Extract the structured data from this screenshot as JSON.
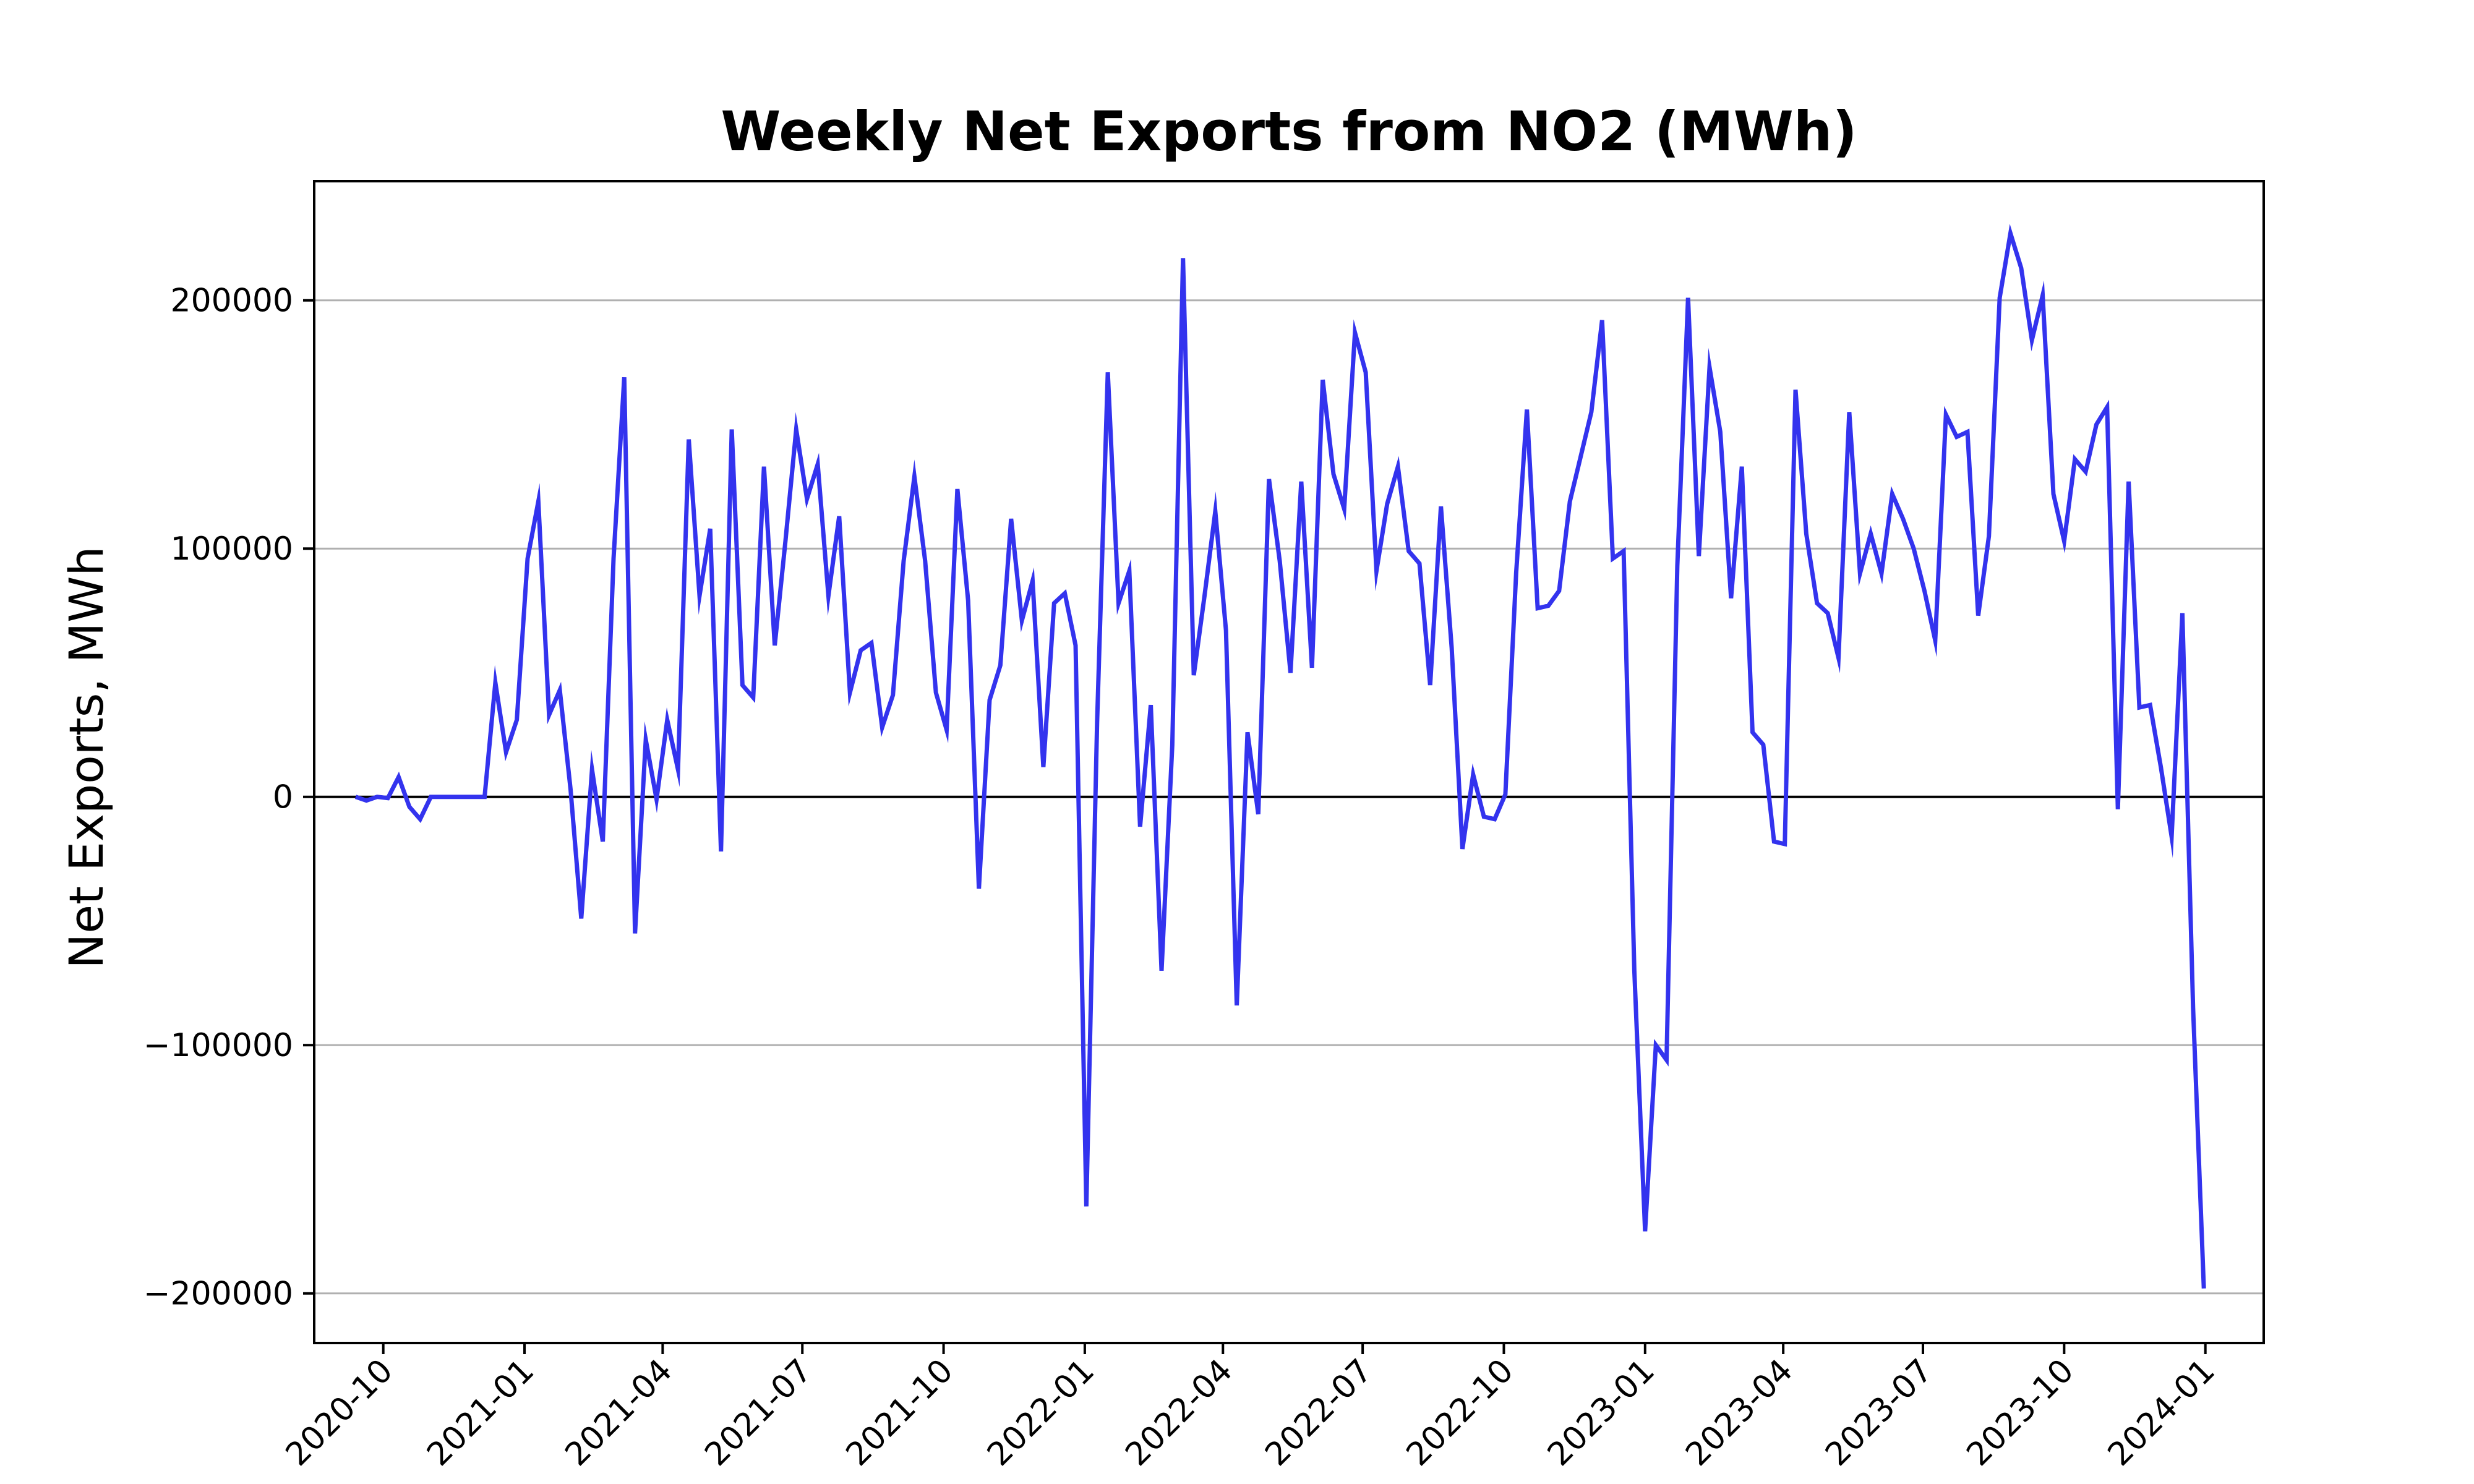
{
  "chart_data": {
    "type": "line",
    "title": "Weekly Net Exports from NO2 (MWh)",
    "xlabel": "",
    "ylabel": "Net Exports, MWh",
    "x_range": [
      "2020-08-17",
      "2024-02-08"
    ],
    "ylim": [
      -220000,
      248000
    ],
    "yticks": [
      -200000,
      -100000,
      0,
      100000,
      200000
    ],
    "ytick_labels": [
      "−200000",
      "−100000",
      "0",
      "100000",
      "200000"
    ],
    "xticks": [
      "2020-10-01",
      "2021-01-01",
      "2021-04-01",
      "2021-07-01",
      "2021-10-01",
      "2022-01-01",
      "2022-04-01",
      "2022-07-01",
      "2022-10-01",
      "2023-01-01",
      "2023-04-01",
      "2023-07-01",
      "2023-10-01",
      "2024-01-01"
    ],
    "xtick_labels": [
      "2020-10",
      "2021-01",
      "2021-04",
      "2021-07",
      "2021-10",
      "2022-01",
      "2022-04",
      "2022-07",
      "2022-10",
      "2023-01",
      "2023-04",
      "2023-07",
      "2023-10",
      "2024-01"
    ],
    "grid": {
      "y": true,
      "x": false
    },
    "zero_line": true,
    "colors": {
      "series": "#3333ee",
      "grid": "#b0b0b0",
      "zero_line": "#000000",
      "axes": "#000000"
    },
    "series": [
      {
        "name": "",
        "x": [
          "2020-09-13",
          "2020-09-20",
          "2020-09-27",
          "2020-10-04",
          "2020-10-11",
          "2020-10-18",
          "2020-10-25",
          "2020-11-01",
          "2020-11-08",
          "2020-11-15",
          "2020-11-22",
          "2020-11-29",
          "2020-12-06",
          "2020-12-13",
          "2020-12-20",
          "2020-12-27",
          "2021-01-03",
          "2021-01-10",
          "2021-01-17",
          "2021-01-24",
          "2021-01-31",
          "2021-02-07",
          "2021-02-14",
          "2021-02-21",
          "2021-02-28",
          "2021-03-07",
          "2021-03-14",
          "2021-03-21",
          "2021-03-28",
          "2021-04-04",
          "2021-04-11",
          "2021-04-18",
          "2021-04-25",
          "2021-05-02",
          "2021-05-09",
          "2021-05-16",
          "2021-05-23",
          "2021-05-30",
          "2021-06-06",
          "2021-06-13",
          "2021-06-20",
          "2021-06-27",
          "2021-07-04",
          "2021-07-11",
          "2021-07-18",
          "2021-07-25",
          "2021-08-01",
          "2021-08-08",
          "2021-08-15",
          "2021-08-22",
          "2021-08-29",
          "2021-09-05",
          "2021-09-12",
          "2021-09-19",
          "2021-09-26",
          "2021-10-03",
          "2021-10-10",
          "2021-10-17",
          "2021-10-24",
          "2021-10-31",
          "2021-11-07",
          "2021-11-14",
          "2021-11-21",
          "2021-11-28",
          "2021-12-05",
          "2021-12-12",
          "2021-12-19",
          "2021-12-26",
          "2022-01-02",
          "2022-01-09",
          "2022-01-16",
          "2022-01-23",
          "2022-01-30",
          "2022-02-06",
          "2022-02-13",
          "2022-02-20",
          "2022-02-27",
          "2022-03-06",
          "2022-03-13",
          "2022-03-20",
          "2022-03-27",
          "2022-04-03",
          "2022-04-10",
          "2022-04-17",
          "2022-04-24",
          "2022-05-01",
          "2022-05-08",
          "2022-05-15",
          "2022-05-22",
          "2022-05-29",
          "2022-06-05",
          "2022-06-12",
          "2022-06-19",
          "2022-06-26",
          "2022-07-03",
          "2022-07-10",
          "2022-07-17",
          "2022-07-24",
          "2022-07-31",
          "2022-08-07",
          "2022-08-14",
          "2022-08-21",
          "2022-08-28",
          "2022-09-04",
          "2022-09-11",
          "2022-09-18",
          "2022-09-25",
          "2022-10-02",
          "2022-10-09",
          "2022-10-16",
          "2022-10-23",
          "2022-10-30",
          "2022-11-06",
          "2022-11-13",
          "2022-11-20",
          "2022-11-27",
          "2022-12-04",
          "2022-12-11",
          "2022-12-18",
          "2022-12-25",
          "2023-01-01",
          "2023-01-08",
          "2023-01-15",
          "2023-01-22",
          "2023-01-29",
          "2023-02-05",
          "2023-02-12",
          "2023-02-19",
          "2023-02-26",
          "2023-03-05",
          "2023-03-12",
          "2023-03-19",
          "2023-03-26",
          "2023-04-02",
          "2023-04-09",
          "2023-04-16",
          "2023-04-23",
          "2023-04-30",
          "2023-05-07",
          "2023-05-14",
          "2023-05-21",
          "2023-05-28",
          "2023-06-04",
          "2023-06-11",
          "2023-06-18",
          "2023-06-25",
          "2023-07-02",
          "2023-07-09",
          "2023-07-16",
          "2023-07-23",
          "2023-07-30",
          "2023-08-06",
          "2023-08-13",
          "2023-08-20",
          "2023-08-27",
          "2023-09-03",
          "2023-09-10",
          "2023-09-17",
          "2023-09-24",
          "2023-10-01",
          "2023-10-08",
          "2023-10-15",
          "2023-10-22",
          "2023-10-29",
          "2023-11-05",
          "2023-11-12",
          "2023-11-19",
          "2023-11-26",
          "2023-12-03",
          "2023-12-10",
          "2023-12-17",
          "2023-12-24",
          "2023-12-31"
        ],
        "values": [
          0,
          -1500,
          0,
          -500,
          8000,
          -4000,
          -9000,
          0,
          0,
          0,
          0,
          0,
          0,
          46000,
          18000,
          31000,
          96000,
          119000,
          33000,
          43000,
          3000,
          -49000,
          11000,
          -18000,
          96000,
          169000,
          -55000,
          23000,
          -1000,
          31000,
          11000,
          144000,
          81000,
          108000,
          -22000,
          148000,
          45000,
          40000,
          133000,
          61000,
          103000,
          148000,
          120000,
          134000,
          81000,
          113000,
          42000,
          59000,
          62000,
          28000,
          41000,
          95000,
          129000,
          95000,
          42000,
          27000,
          124000,
          79000,
          -37000,
          39000,
          53000,
          112000,
          71000,
          87000,
          12000,
          78000,
          82000,
          61000,
          -165000,
          30000,
          171000,
          78000,
          91000,
          -12000,
          37000,
          -70000,
          21000,
          217000,
          49000,
          81000,
          115000,
          67000,
          -84000,
          26000,
          -7000,
          128000,
          95000,
          50000,
          127000,
          52000,
          168000,
          130000,
          116000,
          187000,
          171000,
          91000,
          118000,
          133000,
          99000,
          94000,
          45000,
          117000,
          60000,
          -21000,
          9000,
          -8000,
          -9000,
          1000,
          90000,
          156000,
          76000,
          77000,
          83000,
          119000,
          137000,
          155000,
          192000,
          96000,
          99000,
          -70000,
          -175000,
          -100000,
          -106000,
          93000,
          201000,
          97000,
          173000,
          147000,
          80000,
          133000,
          26000,
          21000,
          -18000,
          -19000,
          164000,
          106000,
          78000,
          74000,
          56000,
          155000,
          90000,
          106000,
          90000,
          122000,
          112000,
          100000,
          83000,
          63000,
          154000,
          145000,
          147000,
          73000,
          105000,
          201000,
          227000,
          213000,
          184000,
          202000,
          122000,
          103000,
          136000,
          131000,
          150000,
          157000,
          -5000,
          127000,
          36000,
          37000,
          12000,
          -16000,
          74000,
          -85000,
          -198000
        ]
      }
    ]
  }
}
